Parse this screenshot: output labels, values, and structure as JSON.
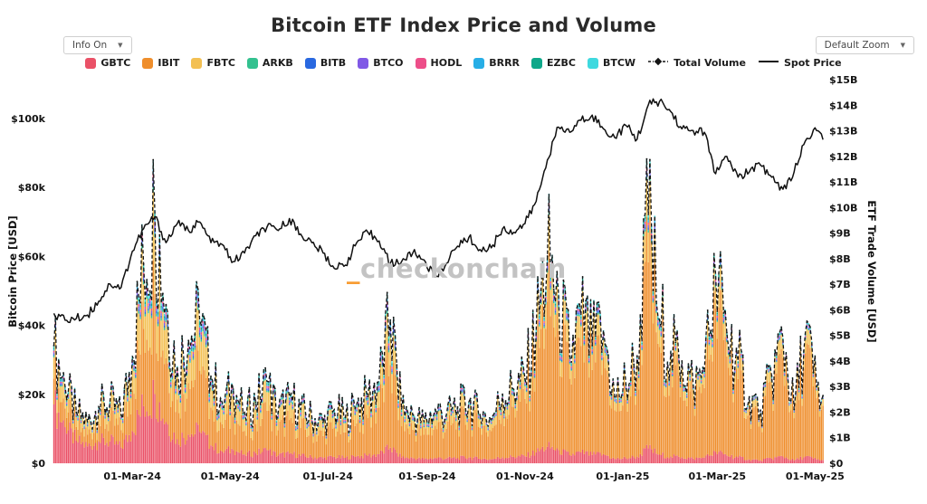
{
  "header": {
    "title": "Bitcoin ETF Index Price and Volume"
  },
  "controls": {
    "info_label": "Info On",
    "zoom_label": "Default Zoom",
    "caret": "▼"
  },
  "watermark": {
    "prefix": "_",
    "text": "checkonchain"
  },
  "legend": {
    "etfs": [
      {
        "label": "GBTC",
        "color": "#ea5167"
      },
      {
        "label": "IBIT",
        "color": "#ef8e2c"
      },
      {
        "label": "FBTC",
        "color": "#f3c053"
      },
      {
        "label": "ARKB",
        "color": "#33c18f"
      },
      {
        "label": "BITB",
        "color": "#2968e0"
      },
      {
        "label": "BTCO",
        "color": "#8059e6"
      },
      {
        "label": "HODL",
        "color": "#ed4e89"
      },
      {
        "label": "BRRR",
        "color": "#27aee6"
      },
      {
        "label": "EZBC",
        "color": "#0ea88a"
      },
      {
        "label": "BTCW",
        "color": "#3fd9df"
      }
    ],
    "lines": [
      {
        "label": "Total Volume",
        "style": "dashed",
        "color": "#141414"
      },
      {
        "label": "Spot Price",
        "style": "solid",
        "color": "#141414"
      }
    ]
  },
  "chart_data": {
    "type": "bar+line",
    "title": "Bitcoin ETF Index Price and Volume",
    "bar_stack_order": [
      "GBTC",
      "IBIT",
      "FBTC",
      "ARKB",
      "BITB",
      "BTCO",
      "HODL",
      "BRRR",
      "EZBC",
      "BTCW"
    ],
    "left_axis": {
      "label": "Bitcoin Price [USD]",
      "tick_values": [
        0,
        20,
        40,
        60,
        80,
        100
      ],
      "tick_labels": [
        "$0",
        "$20k",
        "$40k",
        "$60k",
        "$80k",
        "$100k"
      ],
      "range_usd_k": [
        0,
        111
      ]
    },
    "right_axis": {
      "label": "ETF Trade Volume [USD]",
      "tick_values": [
        0,
        1,
        2,
        3,
        4,
        5,
        6,
        7,
        8,
        9,
        10,
        11,
        12,
        13,
        14,
        15
      ],
      "tick_labels": [
        "$0",
        "$1B",
        "$2B",
        "$3B",
        "$4B",
        "$5B",
        "$6B",
        "$7B",
        "$8B",
        "$9B",
        "$10B",
        "$11B",
        "$12B",
        "$13B",
        "$14B",
        "$15B"
      ],
      "range_usd_b": [
        0,
        15
      ]
    },
    "x_axis": {
      "ticks": [
        {
          "label": "01-Mar-24",
          "date": "2024-03-01"
        },
        {
          "label": "01-May-24",
          "date": "2024-05-01"
        },
        {
          "label": "01-Jul-24",
          "date": "2024-07-01"
        },
        {
          "label": "01-Sep-24",
          "date": "2024-09-01"
        },
        {
          "label": "01-Nov-24",
          "date": "2024-11-01"
        },
        {
          "label": "01-Jan-25",
          "date": "2025-01-01"
        },
        {
          "label": "01-Mar-25",
          "date": "2025-03-01"
        },
        {
          "label": "01-May-25",
          "date": "2025-05-01"
        }
      ]
    },
    "dates": [
      "2024-01-12",
      "2024-01-19",
      "2024-01-26",
      "2024-02-02",
      "2024-02-09",
      "2024-02-16",
      "2024-02-23",
      "2024-03-01",
      "2024-03-08",
      "2024-03-15",
      "2024-03-22",
      "2024-03-29",
      "2024-04-05",
      "2024-04-12",
      "2024-04-19",
      "2024-04-26",
      "2024-05-03",
      "2024-05-10",
      "2024-05-17",
      "2024-05-24",
      "2024-05-31",
      "2024-06-07",
      "2024-06-14",
      "2024-06-21",
      "2024-06-28",
      "2024-07-05",
      "2024-07-12",
      "2024-07-19",
      "2024-07-26",
      "2024-08-02",
      "2024-08-09",
      "2024-08-16",
      "2024-08-23",
      "2024-08-30",
      "2024-09-06",
      "2024-09-13",
      "2024-09-20",
      "2024-09-27",
      "2024-10-04",
      "2024-10-11",
      "2024-10-18",
      "2024-10-25",
      "2024-11-01",
      "2024-11-08",
      "2024-11-15",
      "2024-11-22",
      "2024-11-29",
      "2024-12-06",
      "2024-12-13",
      "2024-12-20",
      "2024-12-27",
      "2025-01-03",
      "2025-01-10",
      "2025-01-17",
      "2025-01-24",
      "2025-01-31",
      "2025-02-07",
      "2025-02-14",
      "2025-02-21",
      "2025-02-28",
      "2025-03-07",
      "2025-03-14",
      "2025-03-21",
      "2025-03-28",
      "2025-04-04",
      "2025-04-11",
      "2025-04-18",
      "2025-04-25",
      "2025-05-02",
      "2025-05-06"
    ],
    "spot_price_usd_k": [
      43.5,
      41.5,
      42.0,
      43.0,
      47.0,
      52.0,
      51.0,
      61.5,
      68.0,
      71.5,
      64.0,
      69.5,
      67.5,
      70.0,
      64.0,
      63.5,
      58.5,
      61.0,
      66.0,
      68.5,
      67.5,
      71.0,
      66.5,
      64.0,
      61.0,
      56.5,
      57.5,
      64.0,
      67.0,
      64.5,
      58.0,
      58.5,
      61.0,
      59.0,
      54.0,
      58.0,
      63.0,
      65.5,
      62.0,
      62.5,
      68.0,
      67.0,
      69.5,
      76.0,
      88.0,
      97.5,
      96.0,
      99.5,
      101.0,
      97.0,
      94.5,
      98.0,
      94.0,
      104.0,
      105.0,
      102.0,
      97.0,
      96.5,
      96.0,
      84.0,
      89.0,
      83.0,
      84.5,
      86.5,
      83.0,
      79.5,
      84.5,
      93.5,
      96.5,
      94.5
    ],
    "total_volume_usd_b": [
      4.6,
      3.0,
      2.0,
      1.6,
      2.2,
      2.4,
      1.9,
      4.2,
      7.8,
      9.9,
      6.2,
      3.8,
      4.8,
      5.6,
      3.4,
      2.4,
      2.9,
      2.0,
      2.4,
      3.2,
      2.0,
      2.6,
      2.1,
      1.8,
      1.6,
      2.1,
      1.8,
      2.3,
      2.6,
      3.2,
      5.6,
      2.1,
      1.9,
      1.6,
      2.1,
      1.9,
      2.2,
      2.4,
      1.9,
      1.7,
      2.7,
      2.9,
      3.3,
      5.2,
      8.1,
      6.6,
      4.2,
      5.8,
      4.6,
      5.2,
      2.6,
      3.1,
      4.2,
      9.7,
      5.6,
      4.4,
      4.0,
      3.1,
      3.6,
      7.4,
      5.1,
      4.0,
      2.6,
      2.1,
      3.4,
      4.9,
      2.1,
      5.1,
      3.0,
      2.3
    ],
    "composition_share_anchors": [
      {
        "index": 0,
        "GBTC": 0.5,
        "IBIT": 0.22,
        "FBTC": 0.18,
        "others": 0.1
      },
      {
        "index": 7,
        "GBTC": 0.3,
        "IBIT": 0.38,
        "FBTC": 0.22,
        "others": 0.1
      },
      {
        "index": 16,
        "GBTC": 0.18,
        "IBIT": 0.45,
        "FBTC": 0.24,
        "others": 0.13
      },
      {
        "index": 25,
        "GBTC": 0.12,
        "IBIT": 0.55,
        "FBTC": 0.2,
        "others": 0.13
      },
      {
        "index": 34,
        "GBTC": 0.1,
        "IBIT": 0.6,
        "FBTC": 0.18,
        "others": 0.12
      },
      {
        "index": 44,
        "GBTC": 0.08,
        "IBIT": 0.7,
        "FBTC": 0.14,
        "others": 0.08
      },
      {
        "index": 53,
        "GBTC": 0.06,
        "IBIT": 0.75,
        "FBTC": 0.12,
        "others": 0.07
      },
      {
        "index": 60,
        "GBTC": 0.06,
        "IBIT": 0.76,
        "FBTC": 0.11,
        "others": 0.07
      },
      {
        "index": 69,
        "GBTC": 0.05,
        "IBIT": 0.8,
        "FBTC": 0.1,
        "others": 0.05
      }
    ]
  }
}
